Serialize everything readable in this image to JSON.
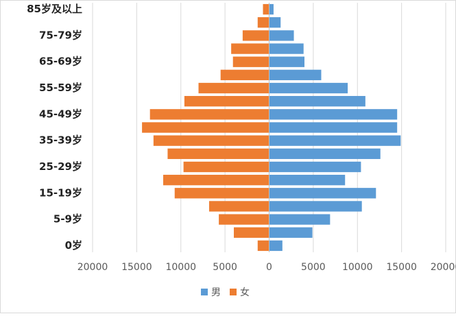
{
  "chart_data": {
    "type": "pyramid",
    "categories": [
      "0岁",
      null,
      "5-9岁",
      null,
      "15-19岁",
      null,
      "25-29岁",
      null,
      "35-39岁",
      null,
      "45-49岁",
      null,
      "55-59岁",
      null,
      "65-69岁",
      null,
      "75-79岁",
      null,
      "85岁及以上"
    ],
    "series": [
      {
        "name": "男",
        "color": "#5b9bd5",
        "values": [
          1500,
          4900,
          6900,
          10500,
          12100,
          8600,
          10400,
          12600,
          14900,
          14500,
          14500,
          10900,
          8900,
          5900,
          4000,
          3900,
          2800,
          1300,
          500
        ]
      },
      {
        "name": "女",
        "color": "#ed7d31",
        "values": [
          -1300,
          -4000,
          -5700,
          -6800,
          -10700,
          -12000,
          -9700,
          -11500,
          -13100,
          -14400,
          -13500,
          -9600,
          -8000,
          -5500,
          -4100,
          -4300,
          -3000,
          -1300,
          -700
        ]
      }
    ],
    "xlim": [
      -20000,
      20000
    ],
    "xticks": [
      {
        "value": -20000,
        "label": "20000"
      },
      {
        "value": -15000,
        "label": "15000"
      },
      {
        "value": -10000,
        "label": "10000"
      },
      {
        "value": -5000,
        "label": "5000"
      },
      0,
      5000,
      10000,
      15000,
      20000
    ],
    "grid": true,
    "legend": "bottom"
  }
}
